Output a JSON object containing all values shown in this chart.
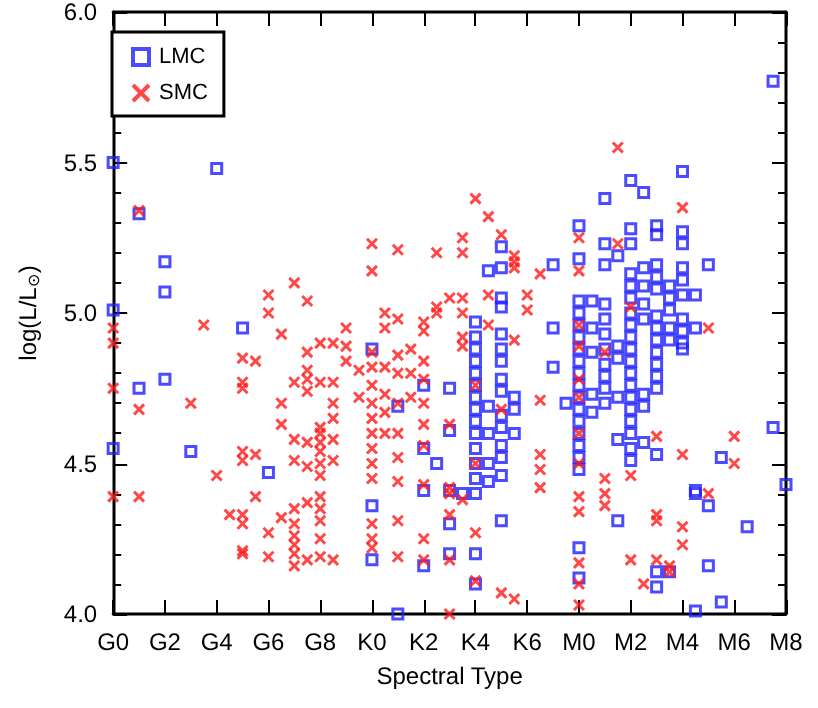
{
  "chart_data": {
    "type": "scatter",
    "xlabel": "Spectral Type",
    "ylabel": "log(L/L$_{⊙}$)",
    "categories": [
      "G0",
      null,
      null,
      null,
      "G2",
      null,
      null,
      null,
      "G4",
      null,
      null,
      null,
      "G6",
      null,
      null,
      null,
      "G8",
      null,
      null,
      null,
      "K0",
      null,
      null,
      null,
      "K2",
      null,
      null,
      null,
      "K4",
      null,
      null,
      null,
      "K6",
      null,
      null,
      null,
      "M0",
      null,
      null,
      null,
      "M2",
      null,
      null,
      null,
      "M4",
      null,
      null,
      null,
      "M6",
      null,
      null,
      null,
      "M8"
    ],
    "ylim": [
      4,
      6
    ],
    "yticks": [
      {
        "value": 4,
        "label": "4.0"
      },
      {
        "value": 4.5,
        "label": "4.5"
      },
      {
        "value": 5,
        "label": "5.0"
      },
      {
        "value": 5.5,
        "label": "5.5"
      },
      {
        "value": 6,
        "label": "6.0"
      }
    ],
    "grid": false,
    "legend": "top left",
    "series": [
      {
        "name": "LMC",
        "color": "#1f1fff",
        "marker": "square",
        "values": [
          5.5,
          null,
          5.33,
          null,
          5.17,
          null,
          4.54,
          null,
          5.48,
          null,
          4.95,
          null,
          4.47,
          null,
          null,
          null,
          null,
          null,
          null,
          null,
          4.88,
          null,
          4.0,
          null,
          4.76,
          4.5,
          4.75,
          4.4,
          4.97,
          5.14,
          5.22,
          4.72,
          null,
          null,
          5.16,
          4.7,
          5.29,
          5.04,
          5.38,
          5.19,
          5.44,
          5.4,
          5.29,
          5.09,
          5.47,
          5.06,
          5.16,
          4.52,
          null,
          4.29,
          null,
          5.77,
          4.43
        ]
      },
      {
        "color": "#1f1fff",
        "marker": "square",
        "values": [
          5.01,
          null,
          4.75,
          null,
          5.07,
          null,
          null,
          null,
          null,
          null,
          null,
          null,
          null,
          null,
          null,
          null,
          null,
          null,
          null,
          null,
          4.36,
          null,
          4.69,
          null,
          4.55,
          null,
          4.61,
          null,
          4.92,
          4.69,
          5.15,
          4.68,
          null,
          null,
          4.95,
          null,
          5.18,
          4.95,
          5.23,
          4.89,
          5.28,
          5.15,
          5.26,
          5.05,
          5.27,
          4.95,
          4.36,
          4.04,
          null,
          null,
          null,
          4.62,
          null
        ]
      },
      {
        "color": "#1f1fff",
        "marker": "square",
        "values": [
          4.55,
          null,
          null,
          null,
          4.78,
          null,
          null,
          null,
          null,
          null,
          null,
          null,
          null,
          null,
          null,
          null,
          null,
          null,
          null,
          null,
          4.18,
          null,
          null,
          null,
          4.41,
          null,
          4.41,
          null,
          4.88,
          4.6,
          5.05,
          4.6,
          null,
          null,
          4.82,
          null,
          5.04,
          4.87,
          5.16,
          4.85,
          5.23,
          5.09,
          5.16,
          5.01,
          5.23,
          4.41,
          4.16,
          null,
          null,
          null,
          null,
          null,
          null
        ]
      },
      {
        "color": "#1f1fff",
        "marker": "square",
        "values": [
          null,
          null,
          null,
          null,
          null,
          null,
          null,
          null,
          null,
          null,
          null,
          null,
          null,
          null,
          null,
          null,
          null,
          null,
          null,
          null,
          null,
          null,
          null,
          null,
          4.16,
          null,
          4.3,
          null,
          4.84,
          4.5,
          5.02,
          null,
          null,
          null,
          null,
          null,
          5.0,
          4.73,
          5.03,
          4.72,
          5.13,
          5.03,
          5.12,
          4.95,
          5.15,
          4.4,
          null,
          null,
          null,
          null,
          null,
          null,
          null
        ]
      },
      {
        "color": "#1f1fff",
        "marker": "square",
        "values": [
          null,
          null,
          null,
          null,
          null,
          null,
          null,
          null,
          null,
          null,
          null,
          null,
          null,
          null,
          null,
          null,
          null,
          null,
          null,
          null,
          null,
          null,
          null,
          null,
          null,
          null,
          4.2,
          null,
          4.8,
          4.44,
          4.93,
          null,
          null,
          null,
          null,
          null,
          4.96,
          4.67,
          4.98,
          4.58,
          5.09,
          4.98,
          5.08,
          4.91,
          5.11,
          4.01,
          null,
          null,
          null,
          null,
          null,
          null,
          null
        ]
      },
      {
        "color": "#1f1fff",
        "marker": "square",
        "values": [
          null,
          null,
          null,
          null,
          null,
          null,
          null,
          null,
          null,
          null,
          null,
          null,
          null,
          null,
          null,
          null,
          null,
          null,
          null,
          null,
          null,
          null,
          null,
          null,
          null,
          null,
          null,
          null,
          4.76,
          null,
          4.88,
          null,
          null,
          null,
          null,
          null,
          4.92,
          null,
          4.93,
          4.31,
          5.05,
          4.73,
          4.99,
          4.14,
          5.06,
          null,
          null,
          null,
          null,
          null,
          null,
          null,
          null
        ]
      },
      {
        "color": "#1f1fff",
        "marker": "square",
        "values": [
          null,
          null,
          null,
          null,
          null,
          null,
          null,
          null,
          null,
          null,
          null,
          null,
          null,
          null,
          null,
          null,
          null,
          null,
          null,
          null,
          null,
          null,
          null,
          null,
          null,
          null,
          null,
          null,
          4.72,
          null,
          4.84,
          null,
          null,
          null,
          null,
          null,
          4.88,
          null,
          4.88,
          null,
          5.0,
          4.69,
          4.95,
          null,
          4.98,
          null,
          null,
          null,
          null,
          null,
          null,
          null,
          null
        ]
      },
      {
        "color": "#1f1fff",
        "marker": "square",
        "values": [
          null,
          null,
          null,
          null,
          null,
          null,
          null,
          null,
          null,
          null,
          null,
          null,
          null,
          null,
          null,
          null,
          null,
          null,
          null,
          null,
          null,
          null,
          null,
          null,
          null,
          null,
          null,
          null,
          4.68,
          null,
          4.78,
          null,
          null,
          null,
          null,
          null,
          4.84,
          null,
          4.83,
          null,
          4.96,
          4.57,
          4.91,
          null,
          4.94,
          null,
          null,
          null,
          null,
          null,
          null,
          null,
          null
        ]
      },
      {
        "color": "#1f1fff",
        "marker": "square",
        "values": [
          null,
          null,
          null,
          null,
          null,
          null,
          null,
          null,
          null,
          null,
          null,
          null,
          null,
          null,
          null,
          null,
          null,
          null,
          null,
          null,
          null,
          null,
          null,
          null,
          null,
          null,
          null,
          null,
          4.64,
          null,
          4.74,
          null,
          null,
          null,
          null,
          null,
          4.8,
          null,
          4.79,
          null,
          4.92,
          null,
          4.87,
          null,
          4.9,
          null,
          null,
          null,
          null,
          null,
          null,
          null,
          null
        ]
      },
      {
        "color": "#1f1fff",
        "marker": "square",
        "values": [
          null,
          null,
          null,
          null,
          null,
          null,
          null,
          null,
          null,
          null,
          null,
          null,
          null,
          null,
          null,
          null,
          null,
          null,
          null,
          null,
          null,
          null,
          null,
          null,
          null,
          null,
          null,
          null,
          4.6,
          null,
          4.66,
          null,
          null,
          null,
          null,
          null,
          4.76,
          null,
          4.75,
          null,
          4.88,
          null,
          4.83,
          null,
          4.88,
          null,
          null,
          null,
          null,
          null,
          null,
          null,
          null
        ]
      },
      {
        "color": "#1f1fff",
        "marker": "square",
        "values": [
          null,
          null,
          null,
          null,
          null,
          null,
          null,
          null,
          null,
          null,
          null,
          null,
          null,
          null,
          null,
          null,
          null,
          null,
          null,
          null,
          null,
          null,
          null,
          null,
          null,
          null,
          null,
          null,
          4.55,
          null,
          4.62,
          null,
          null,
          null,
          null,
          null,
          4.72,
          null,
          4.7,
          null,
          4.84,
          null,
          4.79,
          null,
          null,
          null,
          null,
          null,
          null,
          null,
          null,
          null,
          null
        ]
      },
      {
        "color": "#1f1fff",
        "marker": "square",
        "values": [
          null,
          null,
          null,
          null,
          null,
          null,
          null,
          null,
          null,
          null,
          null,
          null,
          null,
          null,
          null,
          null,
          null,
          null,
          null,
          null,
          null,
          null,
          null,
          null,
          null,
          null,
          null,
          null,
          4.5,
          null,
          4.56,
          null,
          null,
          null,
          null,
          null,
          4.68,
          null,
          null,
          null,
          4.8,
          null,
          4.75,
          null,
          null,
          null,
          null,
          null,
          null,
          null,
          null,
          null,
          null
        ]
      },
      {
        "color": "#1f1fff",
        "marker": "square",
        "values": [
          null,
          null,
          null,
          null,
          null,
          null,
          null,
          null,
          null,
          null,
          null,
          null,
          null,
          null,
          null,
          null,
          null,
          null,
          null,
          null,
          null,
          null,
          null,
          null,
          null,
          null,
          null,
          null,
          4.45,
          null,
          4.52,
          null,
          null,
          null,
          null,
          null,
          4.64,
          null,
          null,
          null,
          4.76,
          null,
          4.53,
          null,
          null,
          null,
          null,
          null,
          null,
          null,
          null,
          null,
          null
        ]
      },
      {
        "color": "#1f1fff",
        "marker": "square",
        "values": [
          null,
          null,
          null,
          null,
          null,
          null,
          null,
          null,
          null,
          null,
          null,
          null,
          null,
          null,
          null,
          null,
          null,
          null,
          null,
          null,
          null,
          null,
          null,
          null,
          null,
          null,
          null,
          null,
          4.4,
          null,
          4.46,
          null,
          null,
          null,
          null,
          null,
          4.6,
          null,
          null,
          null,
          4.72,
          null,
          4.14,
          null,
          null,
          null,
          null,
          null,
          null,
          null,
          null,
          null,
          null
        ]
      },
      {
        "color": "#1f1fff",
        "marker": "square",
        "values": [
          null,
          null,
          null,
          null,
          null,
          null,
          null,
          null,
          null,
          null,
          null,
          null,
          null,
          null,
          null,
          null,
          null,
          null,
          null,
          null,
          null,
          null,
          null,
          null,
          null,
          null,
          null,
          null,
          4.2,
          null,
          4.31,
          null,
          null,
          null,
          null,
          null,
          4.56,
          null,
          null,
          null,
          4.68,
          null,
          4.09,
          null,
          null,
          null,
          null,
          null,
          null,
          null,
          null,
          null,
          null
        ]
      },
      {
        "color": "#1f1fff",
        "marker": "square",
        "values": [
          null,
          null,
          null,
          null,
          null,
          null,
          null,
          null,
          null,
          null,
          null,
          null,
          null,
          null,
          null,
          null,
          null,
          null,
          null,
          null,
          null,
          null,
          null,
          null,
          null,
          null,
          null,
          null,
          4.1,
          null,
          null,
          null,
          null,
          null,
          null,
          null,
          4.52,
          null,
          null,
          null,
          4.64,
          null,
          null,
          null,
          null,
          null,
          null,
          null,
          null,
          null,
          null,
          null,
          null
        ]
      },
      {
        "color": "#1f1fff",
        "marker": "square",
        "values": [
          null,
          null,
          null,
          null,
          null,
          null,
          null,
          null,
          null,
          null,
          null,
          null,
          null,
          null,
          null,
          null,
          null,
          null,
          null,
          null,
          null,
          null,
          null,
          null,
          null,
          null,
          null,
          null,
          null,
          null,
          null,
          null,
          null,
          null,
          null,
          null,
          4.48,
          null,
          null,
          null,
          4.6,
          null,
          null,
          null,
          null,
          null,
          null,
          null,
          null,
          null,
          null,
          null,
          null
        ]
      },
      {
        "color": "#1f1fff",
        "marker": "square",
        "values": [
          null,
          null,
          null,
          null,
          null,
          null,
          null,
          null,
          null,
          null,
          null,
          null,
          null,
          null,
          null,
          null,
          null,
          null,
          null,
          null,
          null,
          null,
          null,
          null,
          null,
          null,
          null,
          null,
          null,
          null,
          null,
          null,
          null,
          null,
          null,
          null,
          4.22,
          null,
          null,
          null,
          4.55,
          null,
          null,
          null,
          null,
          null,
          null,
          null,
          null,
          null,
          null,
          null,
          null
        ]
      },
      {
        "color": "#1f1fff",
        "marker": "square",
        "values": [
          null,
          null,
          null,
          null,
          null,
          null,
          null,
          null,
          null,
          null,
          null,
          null,
          null,
          null,
          null,
          null,
          null,
          null,
          null,
          null,
          null,
          null,
          null,
          null,
          null,
          null,
          null,
          null,
          null,
          null,
          null,
          null,
          null,
          null,
          null,
          null,
          4.12,
          null,
          null,
          null,
          4.51,
          null,
          null,
          null,
          null,
          null,
          null,
          null,
          null,
          null,
          null,
          null,
          null
        ]
      },
      {
        "name": "SMC",
        "color": "#ff1a1a",
        "marker": "cross",
        "values": [
          4.95,
          null,
          5.34,
          null,
          null,
          null,
          4.7,
          4.96,
          4.46,
          4.33,
          4.85,
          4.84,
          5.06,
          4.93,
          5.1,
          5.04,
          4.9,
          4.9,
          4.95,
          4.81,
          5.23,
          5.0,
          5.21,
          4.88,
          4.97,
          5.2,
          5.05,
          5.25,
          5.38,
          5.32,
          5.26,
          5.19,
          5.06,
          5.13,
          null,
          null,
          5.25,
          null,
          4.87,
          5.55,
          5.02,
          4.1,
          4.59,
          4.16,
          5.35,
          null,
          4.95,
          null,
          4.59,
          null,
          null,
          null,
          null
        ]
      },
      {
        "color": "#ff1a1a",
        "marker": "cross",
        "values": [
          4.9,
          null,
          4.68,
          null,
          null,
          null,
          null,
          null,
          null,
          null,
          4.77,
          4.53,
          5.0,
          4.7,
          4.77,
          4.87,
          4.77,
          4.77,
          4.89,
          4.72,
          5.14,
          4.95,
          4.98,
          4.8,
          4.94,
          5.02,
          4.63,
          5.2,
          4.76,
          5.06,
          4.68,
          5.17,
          5.01,
          4.71,
          null,
          null,
          5.14,
          null,
          4.45,
          5.23,
          4.46,
          null,
          4.33,
          4.14,
          4.53,
          null,
          4.4,
          null,
          4.5,
          null,
          null,
          null,
          null
        ]
      },
      {
        "color": "#ff1a1a",
        "marker": "cross",
        "values": [
          4.75,
          null,
          4.39,
          null,
          null,
          null,
          null,
          null,
          null,
          null,
          4.75,
          4.39,
          4.27,
          4.63,
          4.58,
          4.81,
          4.62,
          4.7,
          4.84,
          null,
          4.87,
          4.82,
          4.86,
          4.72,
          4.84,
          5.0,
          4.42,
          5.05,
          4.5,
          4.96,
          4.07,
          5.15,
          null,
          4.53,
          null,
          null,
          4.96,
          null,
          4.4,
          null,
          4.18,
          null,
          4.31,
          null,
          4.29,
          null,
          null,
          null,
          null,
          null,
          null,
          null,
          null
        ]
      },
      {
        "color": "#ff1a1a",
        "marker": "cross",
        "values": [
          4.39,
          null,
          null,
          null,
          null,
          null,
          null,
          null,
          null,
          null,
          4.54,
          null,
          4.19,
          4.32,
          4.51,
          4.78,
          4.6,
          4.65,
          null,
          null,
          4.82,
          4.73,
          4.8,
          null,
          4.78,
          null,
          4.4,
          5.0,
          4.27,
          null,
          null,
          4.91,
          null,
          4.48,
          null,
          null,
          4.89,
          null,
          4.36,
          null,
          null,
          null,
          4.18,
          null,
          4.23,
          null,
          null,
          null,
          null,
          null,
          null,
          null,
          null
        ]
      },
      {
        "color": "#ff1a1a",
        "marker": "cross",
        "values": [
          null,
          null,
          null,
          null,
          null,
          null,
          null,
          null,
          null,
          null,
          4.51,
          null,
          null,
          null,
          4.35,
          4.74,
          4.57,
          4.58,
          null,
          null,
          4.76,
          4.67,
          4.7,
          null,
          4.7,
          null,
          4.33,
          4.92,
          4.11,
          null,
          null,
          4.05,
          null,
          4.42,
          null,
          null,
          4.78,
          null,
          null,
          null,
          null,
          null,
          null,
          null,
          null,
          null,
          null,
          null,
          null,
          null,
          null,
          null,
          null
        ]
      },
      {
        "color": "#ff1a1a",
        "marker": "cross",
        "values": [
          null,
          null,
          null,
          null,
          null,
          null,
          null,
          null,
          null,
          null,
          4.33,
          null,
          null,
          null,
          4.3,
          4.57,
          4.54,
          4.51,
          null,
          null,
          4.7,
          4.6,
          4.6,
          null,
          4.63,
          null,
          4.18,
          4.89,
          null,
          null,
          null,
          null,
          null,
          null,
          null,
          null,
          4.72,
          null,
          null,
          null,
          null,
          null,
          null,
          null,
          null,
          null,
          null,
          null,
          null,
          null,
          null,
          null,
          null
        ]
      },
      {
        "color": "#ff1a1a",
        "marker": "cross",
        "values": [
          null,
          null,
          null,
          null,
          null,
          null,
          null,
          null,
          null,
          null,
          4.3,
          null,
          null,
          null,
          4.26,
          4.49,
          4.5,
          4.18,
          null,
          null,
          4.65,
          null,
          4.52,
          null,
          4.56,
          null,
          4.0,
          4.38,
          null,
          null,
          null,
          null,
          null,
          null,
          null,
          null,
          4.6,
          null,
          null,
          null,
          null,
          null,
          null,
          null,
          null,
          null,
          null,
          null,
          null,
          null,
          null,
          null,
          null
        ]
      },
      {
        "color": "#ff1a1a",
        "marker": "cross",
        "values": [
          null,
          null,
          null,
          null,
          null,
          null,
          null,
          null,
          null,
          null,
          4.21,
          null,
          null,
          null,
          4.23,
          4.37,
          4.46,
          null,
          null,
          null,
          4.6,
          null,
          4.44,
          null,
          4.43,
          null,
          null,
          null,
          null,
          null,
          null,
          null,
          null,
          null,
          null,
          null,
          4.5,
          null,
          null,
          null,
          null,
          null,
          null,
          null,
          null,
          null,
          null,
          null,
          null,
          null,
          null,
          null,
          null
        ]
      },
      {
        "color": "#ff1a1a",
        "marker": "cross",
        "values": [
          null,
          null,
          null,
          null,
          null,
          null,
          null,
          null,
          null,
          null,
          4.2,
          null,
          null,
          null,
          4.2,
          4.18,
          4.39,
          null,
          null,
          null,
          4.55,
          null,
          4.31,
          null,
          4.25,
          null,
          null,
          null,
          null,
          null,
          null,
          null,
          null,
          null,
          null,
          null,
          4.39,
          null,
          null,
          null,
          null,
          null,
          null,
          null,
          null,
          null,
          null,
          null,
          null,
          null,
          null,
          null,
          null
        ]
      },
      {
        "color": "#ff1a1a",
        "marker": "cross",
        "values": [
          null,
          null,
          null,
          null,
          null,
          null,
          null,
          null,
          null,
          null,
          null,
          null,
          null,
          null,
          4.16,
          null,
          4.35,
          null,
          null,
          null,
          4.5,
          null,
          4.19,
          null,
          4.18,
          null,
          null,
          null,
          null,
          null,
          null,
          null,
          null,
          null,
          null,
          null,
          4.34,
          null,
          null,
          null,
          null,
          null,
          null,
          null,
          null,
          null,
          null,
          null,
          null,
          null,
          null,
          null,
          null
        ]
      },
      {
        "color": "#ff1a1a",
        "marker": "cross",
        "values": [
          null,
          null,
          null,
          null,
          null,
          null,
          null,
          null,
          null,
          null,
          null,
          null,
          null,
          null,
          null,
          null,
          4.31,
          null,
          null,
          null,
          4.45,
          null,
          null,
          null,
          null,
          null,
          null,
          null,
          null,
          null,
          null,
          null,
          null,
          null,
          null,
          null,
          4.17,
          null,
          null,
          null,
          null,
          null,
          null,
          null,
          null,
          null,
          null,
          null,
          null,
          null,
          null,
          null,
          null
        ]
      },
      {
        "color": "#ff1a1a",
        "marker": "cross",
        "values": [
          null,
          null,
          null,
          null,
          null,
          null,
          null,
          null,
          null,
          null,
          null,
          null,
          null,
          null,
          null,
          null,
          4.25,
          null,
          null,
          null,
          4.3,
          null,
          null,
          null,
          null,
          null,
          null,
          null,
          null,
          null,
          null,
          null,
          null,
          null,
          null,
          null,
          4.1,
          null,
          null,
          null,
          null,
          null,
          null,
          null,
          null,
          null,
          null,
          null,
          null,
          null,
          null,
          null,
          null
        ]
      },
      {
        "color": "#ff1a1a",
        "marker": "cross",
        "values": [
          null,
          null,
          null,
          null,
          null,
          null,
          null,
          null,
          null,
          null,
          null,
          null,
          null,
          null,
          null,
          null,
          4.19,
          null,
          null,
          null,
          4.25,
          null,
          null,
          null,
          null,
          null,
          null,
          null,
          null,
          null,
          null,
          null,
          null,
          null,
          null,
          null,
          4.03,
          null,
          null,
          null,
          null,
          null,
          null,
          null,
          null,
          null,
          null,
          null,
          null,
          null,
          null,
          null,
          null
        ]
      },
      {
        "color": "#ff1a1a",
        "marker": "cross",
        "values": [
          null,
          null,
          null,
          null,
          null,
          null,
          null,
          null,
          null,
          null,
          null,
          null,
          null,
          null,
          null,
          null,
          null,
          null,
          null,
          null,
          4.22,
          null,
          null,
          null,
          null,
          null,
          null,
          null,
          null,
          null,
          null,
          null,
          null,
          null,
          null,
          null,
          null,
          null,
          null,
          null,
          null,
          null,
          null,
          null,
          null,
          null,
          null,
          null,
          null,
          null,
          null,
          null,
          null
        ]
      }
    ]
  }
}
